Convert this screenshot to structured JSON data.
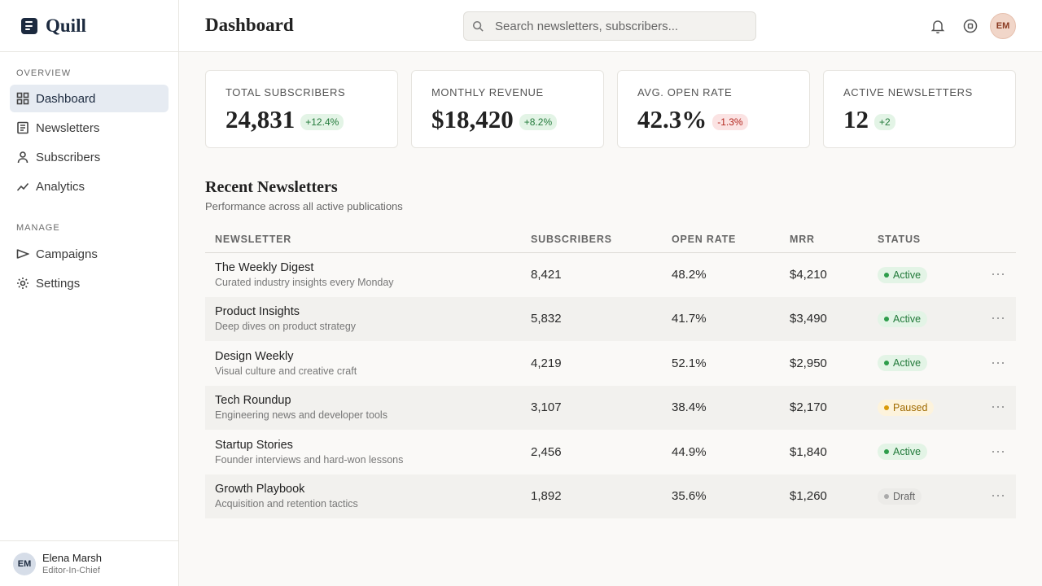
{
  "sidebar": {
    "brand": "Quill",
    "sections": [
      {
        "label": "OVERVIEW",
        "items": [
          "Dashboard",
          "Newsletters",
          "Subscribers",
          "Analytics"
        ]
      },
      {
        "label": "MANAGE",
        "items": [
          "Campaigns",
          "Settings"
        ]
      }
    ],
    "user": {
      "initials": "EM",
      "name": "Elena Marsh",
      "role": "Editor-In-Chief"
    }
  },
  "header": {
    "title": "Dashboard",
    "search_placeholder": "Search newsletters, subscribers...",
    "avatar": "EM"
  },
  "stats": [
    {
      "label": "TOTAL SUBSCRIBERS",
      "value": "24,831",
      "delta": "+12.4%"
    },
    {
      "label": "MONTHLY REVENUE",
      "value": "$18,420",
      "delta": "+8.2%"
    },
    {
      "label": "AVG. OPEN RATE",
      "value": "42.3%",
      "delta": "-1.3%"
    },
    {
      "label": "ACTIVE NEWSLETTERS",
      "value": "12",
      "delta": "+2"
    }
  ],
  "table": {
    "title": "Recent Newsletters",
    "subtitle": "Performance across all active publications",
    "columns": [
      "NEWSLETTER",
      "SUBSCRIBERS",
      "OPEN RATE",
      "MRR",
      "STATUS"
    ],
    "rows": [
      {
        "name": "The Weekly Digest",
        "description": "Curated industry insights every Monday",
        "subscribers": "8,421",
        "open_rate": "48.2%",
        "mrr": "$4,210",
        "status": "Active"
      },
      {
        "name": "Product Insights",
        "description": "Deep dives on product strategy",
        "subscribers": "5,832",
        "open_rate": "41.7%",
        "mrr": "$3,490",
        "status": "Active"
      },
      {
        "name": "Design Weekly",
        "description": "Visual culture and creative craft",
        "subscribers": "4,219",
        "open_rate": "52.1%",
        "mrr": "$2,950",
        "status": "Active"
      },
      {
        "name": "Tech Roundup",
        "description": "Engineering news and developer tools",
        "subscribers": "3,107",
        "open_rate": "38.4%",
        "mrr": "$2,170",
        "status": "Paused"
      },
      {
        "name": "Startup Stories",
        "description": "Founder interviews and hard-won lessons",
        "subscribers": "2,456",
        "open_rate": "44.9%",
        "mrr": "$1,840",
        "status": "Active"
      },
      {
        "name": "Growth Playbook",
        "description": "Acquisition and retention tactics",
        "subscribers": "1,892",
        "open_rate": "35.6%",
        "mrr": "$1,260",
        "status": "Draft"
      }
    ]
  }
}
